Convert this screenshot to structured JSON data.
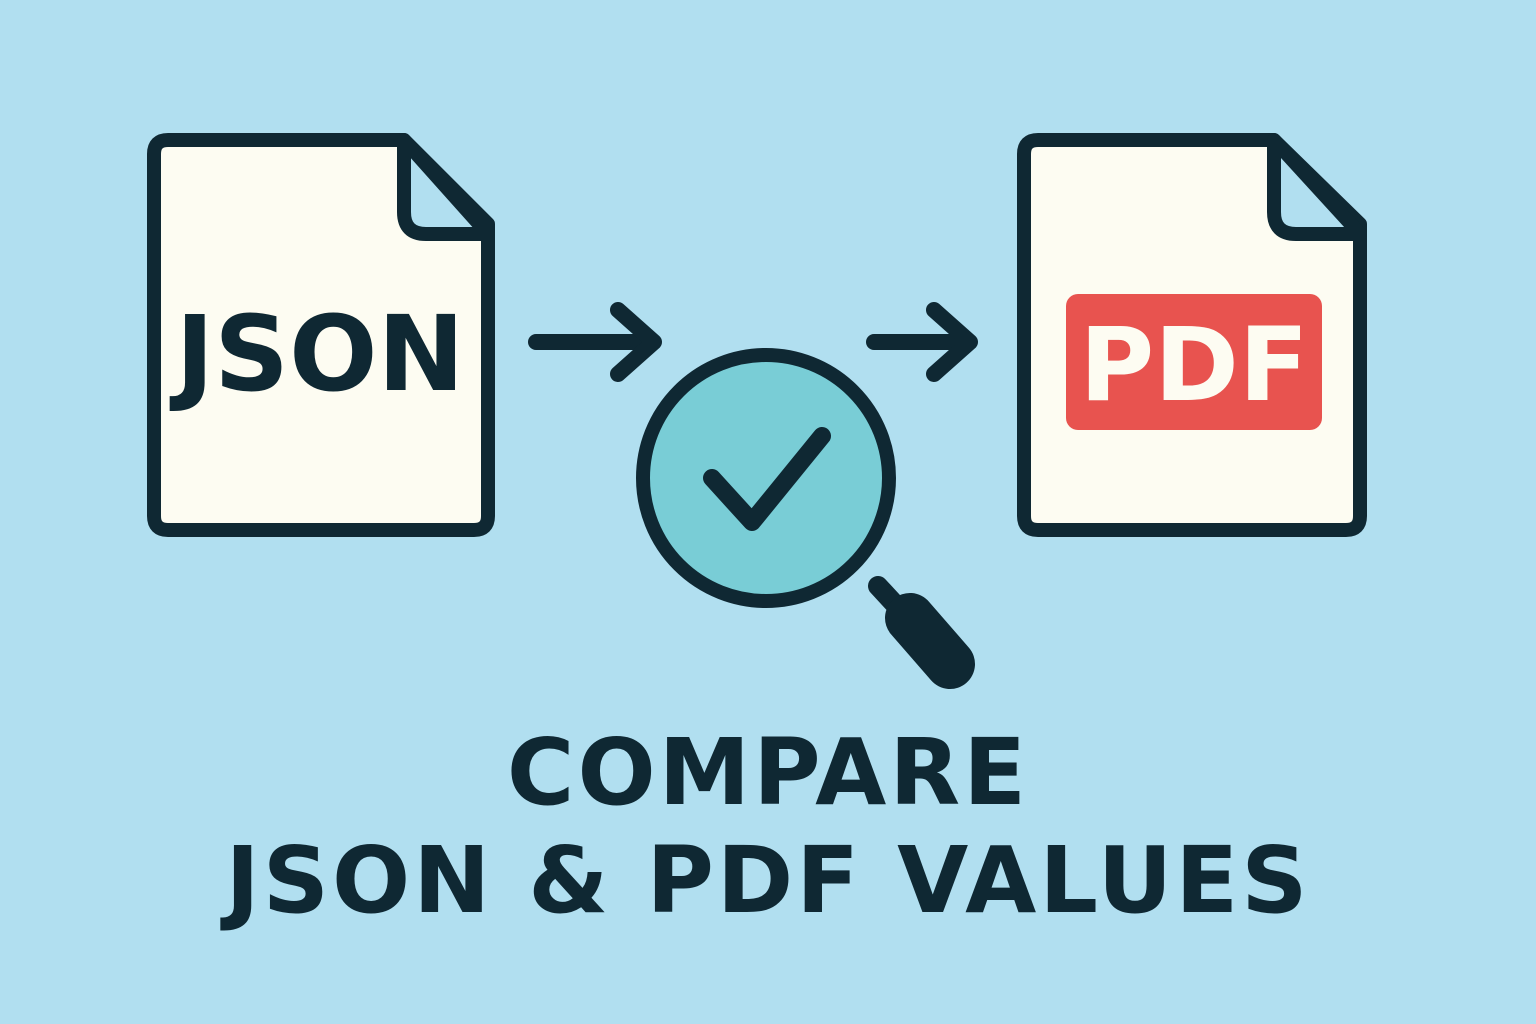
{
  "source_doc": {
    "label": "JSON",
    "icon": "json-file-icon"
  },
  "target_doc": {
    "label": "PDF",
    "icon": "pdf-file-icon",
    "badge_color": "#e8534f"
  },
  "verify": {
    "icon": "magnifier-check-icon",
    "lens_color": "#79cdd6"
  },
  "caption": {
    "line1": "COMPARE",
    "line2": "JSON & PDF VALUES"
  },
  "colors": {
    "background": "#b1dff0",
    "outline": "#0f2833",
    "paper": "#fdfcf2"
  }
}
